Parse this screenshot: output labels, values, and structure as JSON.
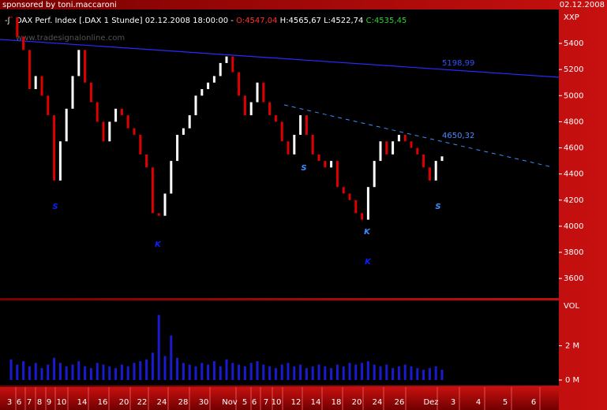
{
  "header": {
    "sponsor": "sponsored by toni.maccaroni",
    "date": "02.12.2008"
  },
  "chart_data": {
    "type": "ohlc_close",
    "title": "DAX Perf. Index [.DAX  1 Stunde] 02.12.2008 18:00:00 -",
    "open_label": "O:4547,04",
    "high_label": "H:4565,67",
    "low_label": "L:4522,74",
    "close_label": "C:4535,45",
    "watermark": "www.tradesignalonline.com",
    "y_axis_label": "XXP",
    "ylim": [
      3450,
      5660
    ],
    "yticks": [
      3600,
      3800,
      4000,
      4200,
      4400,
      4600,
      4800,
      5000,
      5200,
      5400
    ],
    "values": [
      5600,
      5450,
      5350,
      5050,
      5150,
      5000,
      4850,
      4350,
      4650,
      4900,
      5150,
      5350,
      5100,
      4950,
      4800,
      4650,
      4800,
      4900,
      4850,
      4750,
      4700,
      4550,
      4450,
      4100,
      4080,
      4250,
      4500,
      4700,
      4750,
      4850,
      5000,
      5050,
      5100,
      5150,
      5250,
      5300,
      5180,
      5000,
      4850,
      4950,
      5100,
      4950,
      4850,
      4800,
      4650,
      4550,
      4700,
      4850,
      4700,
      4550,
      4500,
      4450,
      4500,
      4300,
      4250,
      4200,
      4100,
      4050,
      4300,
      4500,
      4650,
      4550,
      4650,
      4700,
      4650,
      4600,
      4550,
      4450,
      4350,
      4500,
      4535
    ],
    "up_color": "#ffffff",
    "down_color": "#e00000",
    "annotations": [
      "5198,99",
      "4650,32",
      "S",
      "K",
      "S",
      "K",
      "K",
      "S"
    ],
    "x_labels": [
      "3",
      "6",
      "7",
      "8",
      "9",
      "10",
      "14",
      "16",
      "20",
      "22",
      "24",
      "28",
      "30",
      "Nov",
      "5",
      "6",
      "7",
      "10",
      "12",
      "14",
      "18",
      "20",
      "24",
      "26",
      "Dez",
      "3",
      "4",
      "5",
      "6"
    ],
    "volume": {
      "label": "VOL",
      "color": "#1a1ad0",
      "ylim": [
        0,
        4.6
      ],
      "yticks": [
        {
          "value": 0,
          "label": "0 M"
        },
        {
          "value": 2,
          "label": "2 M"
        }
      ],
      "values": [
        1.2,
        0.9,
        1.1,
        0.8,
        1.0,
        0.7,
        0.9,
        1.3,
        1.0,
        0.8,
        0.9,
        1.1,
        0.8,
        0.7,
        1.0,
        0.9,
        0.8,
        0.7,
        0.9,
        0.8,
        1.0,
        1.1,
        1.2,
        1.6,
        3.8,
        1.4,
        2.6,
        1.3,
        1.0,
        0.9,
        0.8,
        1.0,
        0.9,
        1.1,
        0.8,
        1.2,
        1.0,
        0.9,
        0.8,
        1.0,
        1.1,
        0.9,
        0.8,
        0.7,
        0.9,
        1.0,
        0.8,
        0.9,
        0.7,
        0.8,
        0.9,
        0.8,
        0.7,
        0.9,
        0.8,
        1.0,
        0.9,
        1.0,
        1.1,
        0.9,
        0.8,
        0.9,
        0.7,
        0.8,
        0.9,
        0.8,
        0.7,
        0.6,
        0.7,
        0.8,
        0.6
      ]
    }
  }
}
